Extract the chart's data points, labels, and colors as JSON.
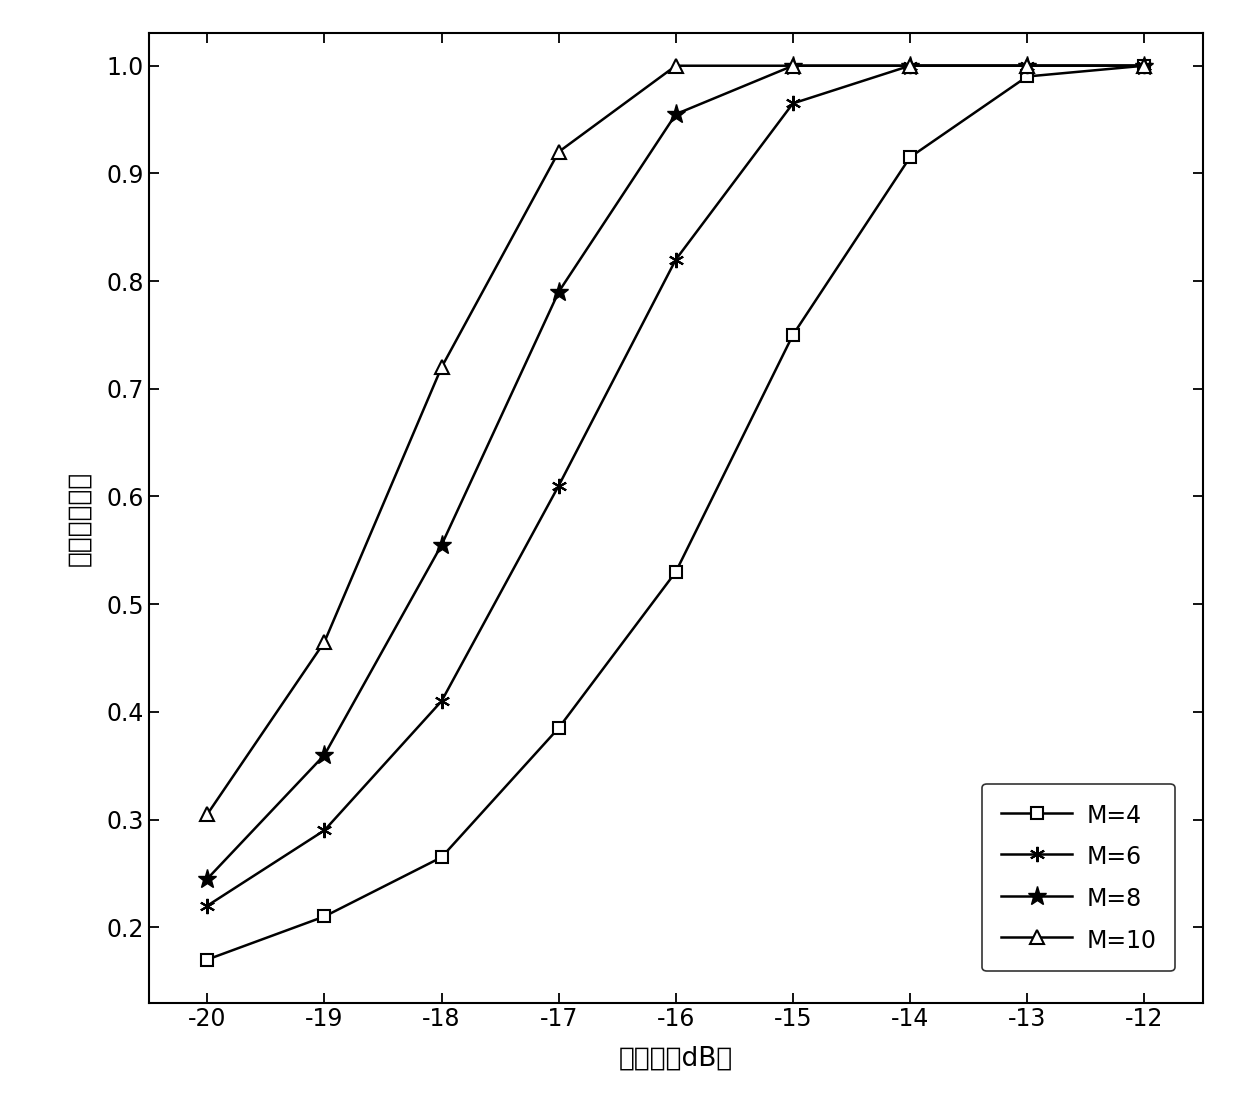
{
  "x": [
    -20,
    -19,
    -18,
    -17,
    -16,
    -15,
    -14,
    -13,
    -12
  ],
  "M4": [
    0.17,
    0.21,
    0.265,
    0.385,
    0.53,
    0.75,
    0.915,
    0.99,
    1.0
  ],
  "M6": [
    0.22,
    0.29,
    0.41,
    0.61,
    0.82,
    0.965,
    1.0,
    1.0,
    1.0
  ],
  "M8": [
    0.245,
    0.36,
    0.555,
    0.79,
    0.955,
    1.0,
    1.0,
    1.0,
    1.0
  ],
  "M10": [
    0.305,
    0.465,
    0.72,
    0.92,
    1.0,
    1.0,
    1.0,
    1.0,
    1.0
  ],
  "xlabel": "信噪比（dB）",
  "ylabel": "正确检测概率",
  "xlim": [
    -20.5,
    -11.5
  ],
  "ylim": [
    0.13,
    1.03
  ],
  "xticks": [
    -20,
    -19,
    -18,
    -17,
    -16,
    -15,
    -14,
    -13,
    -12
  ],
  "yticks": [
    0.2,
    0.3,
    0.4,
    0.5,
    0.6,
    0.7,
    0.8,
    0.9,
    1.0
  ],
  "legend_labels": [
    "M=4",
    "M=6",
    "M=8",
    "M=10"
  ],
  "line_color": "#000000",
  "background_color": "#ffffff",
  "fig_width": 12.4,
  "fig_height": 11.14,
  "dpi": 100
}
